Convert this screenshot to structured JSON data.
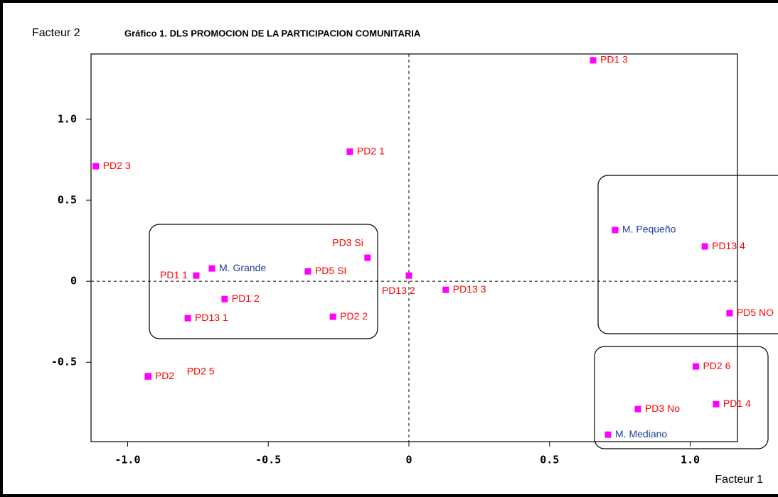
{
  "chart_data": {
    "type": "scatter",
    "title": "Gráfico 1.  DLS PROMOCION DE LA PARTICIPACION COMUNITARIA",
    "x_label": "Facteur 1",
    "y_label": "Facteur 2",
    "xlim": [
      -1.13,
      1.168
    ],
    "ylim": [
      -0.99,
      1.403
    ],
    "xticks": [
      {
        "value": -1,
        "label": "-1.0"
      },
      {
        "value": -0.5,
        "label": "-0.5"
      },
      0,
      0.5,
      {
        "value": 1,
        "label": "1.0"
      }
    ],
    "yticks": [
      {
        "value": -0.5,
        "label": "-0.5"
      },
      0,
      0.5,
      {
        "value": 1,
        "label": "1.0"
      }
    ],
    "marker_color": "#ff00ff",
    "points": [
      {
        "label": "PD1 3",
        "x": 0.655,
        "y": 1.364,
        "label_color": "#ff0000"
      },
      {
        "label": "PD2 1",
        "x": -0.21,
        "y": 0.8,
        "label_color": "#ff0000"
      },
      {
        "label": "PD2 3",
        "x": -1.113,
        "y": 0.71,
        "label_color": "#ff0000"
      },
      {
        "label": "PD3 Si",
        "x": -0.147,
        "y": 0.145,
        "label_color": "#ff0000"
      },
      {
        "label": "M. Pequeño",
        "x": 0.733,
        "y": 0.316,
        "label_color": "#1f3f9f"
      },
      {
        "label": "PD13 4",
        "x": 1.052,
        "y": 0.215,
        "label_color": "#ff0000"
      },
      {
        "label": "M. Grande",
        "x": -0.7,
        "y": 0.079,
        "label_color": "#1f3f9f"
      },
      {
        "label": "PD1 1",
        "x": -0.756,
        "y": 0.035,
        "label_color": "#ff0000"
      },
      {
        "label": "PD5 SI",
        "x": -0.359,
        "y": 0.061,
        "label_color": "#ff0000"
      },
      {
        "label": "PD13 2",
        "x": 0.0,
        "y": 0.035,
        "label_color": "#ff0000"
      },
      {
        "label": "PD13 3",
        "x": 0.131,
        "y": -0.053,
        "label_color": "#ff0000"
      },
      {
        "label": "PD1 2",
        "x": -0.655,
        "y": -0.11,
        "label_color": "#ff0000"
      },
      {
        "label": "PD13 1",
        "x": -0.786,
        "y": -0.228,
        "label_color": "#ff0000"
      },
      {
        "label": "PD2 2",
        "x": -0.27,
        "y": -0.219,
        "label_color": "#ff0000"
      },
      {
        "label": "PD5 NO",
        "x": 1.14,
        "y": -0.197,
        "label_color": "#ff0000"
      },
      {
        "label": "PD2 6",
        "x": 1.02,
        "y": -0.526,
        "label_color": "#ff0000"
      },
      {
        "label": "PD2",
        "x": -0.928,
        "y": -0.588,
        "label_color": "#ff0000"
      },
      {
        "label": "PD2 5",
        "x": -0.926,
        "y": -0.586,
        "label_color": "#ff0000"
      },
      {
        "label": "PD1 4",
        "x": 1.092,
        "y": -0.759,
        "label_color": "#ff0000"
      },
      {
        "label": "PD3 No",
        "x": 0.814,
        "y": -0.789,
        "label_color": "#ff0000"
      },
      {
        "label": "M. Mediano",
        "x": 0.708,
        "y": -0.947,
        "label_color": "#1f3f9f"
      }
    ]
  }
}
